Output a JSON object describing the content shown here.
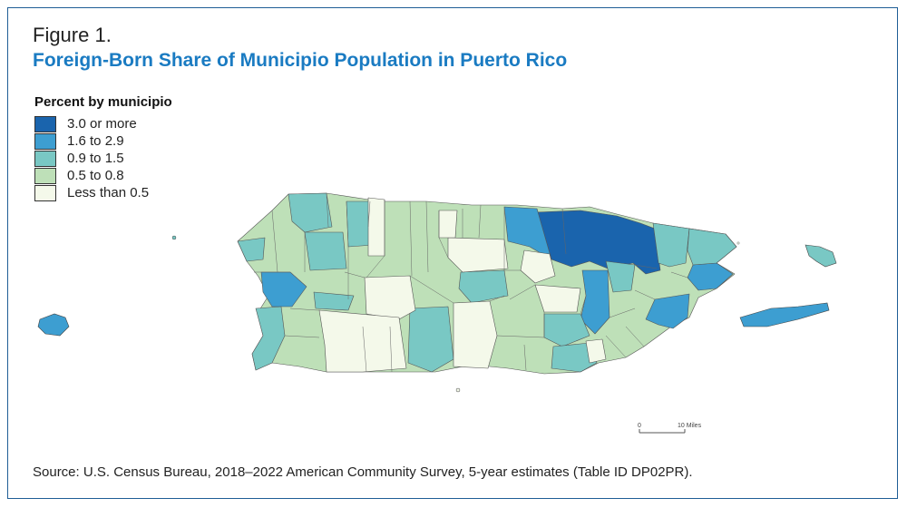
{
  "figure_label": "Figure 1.",
  "title": "Foreign-Born Share of Municipio Population in Puerto Rico",
  "legend": {
    "title": "Percent by municipio",
    "items": [
      {
        "label": "3.0 or more",
        "color": "#1a64ad"
      },
      {
        "label": "1.6 to 2.9",
        "color": "#3d9ed1"
      },
      {
        "label": "0.9 to 1.5",
        "color": "#79c8c4"
      },
      {
        "label": "0.5 to 0.8",
        "color": "#bee0b8"
      },
      {
        "label": "Less than 0.5",
        "color": "#f4f9ea"
      }
    ]
  },
  "scale_bar": {
    "start_label": "0",
    "end_label": "10 Miles"
  },
  "source": "Source: U.S. Census Bureau, 2018–2022 American Community Survey, 5-year estimates (Table ID DP02PR)."
}
